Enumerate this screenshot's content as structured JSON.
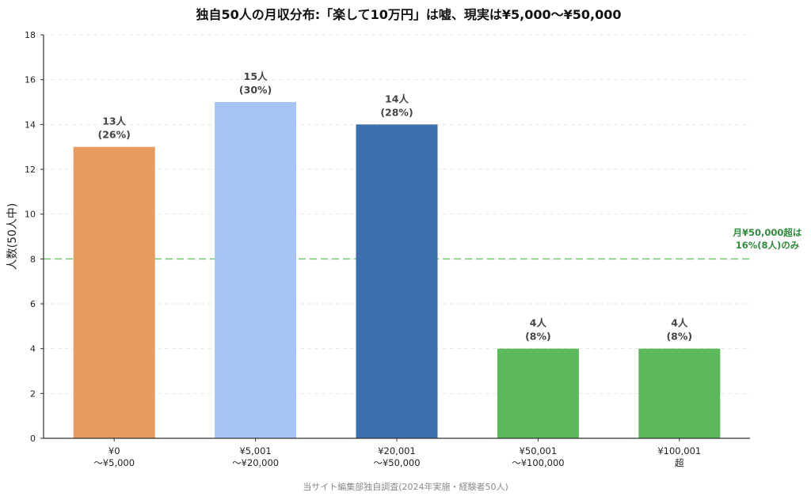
{
  "chart_data": {
    "type": "bar",
    "title": "独自50人の月収分布:「楽して10万円」は嘘、現実は¥5,000〜¥50,000",
    "ylabel": "人数(50人中)",
    "xlabel": "",
    "ylim": [
      0,
      18
    ],
    "yticks": [
      0,
      2,
      4,
      6,
      8,
      10,
      12,
      14,
      16,
      18
    ],
    "grid": true,
    "categories": [
      [
        "¥0",
        "〜¥5,000"
      ],
      [
        "¥5,001",
        "〜¥20,000"
      ],
      [
        "¥20,001",
        "〜¥50,000"
      ],
      [
        "¥50,001",
        "〜¥100,000"
      ],
      [
        "¥100,001",
        "超"
      ]
    ],
    "values": [
      13,
      15,
      14,
      4,
      4
    ],
    "value_labels": [
      [
        "13人",
        "(26%)"
      ],
      [
        "15人",
        "(30%)"
      ],
      [
        "14人",
        "(28%)"
      ],
      [
        "4人",
        "(8%)"
      ],
      [
        "4人",
        "(8%)"
      ]
    ],
    "colors": [
      "#e89b5e",
      "#a7c5f4",
      "#3c6fb0",
      "#5cb85c",
      "#5cb85c"
    ],
    "reference_line": {
      "value": 8,
      "color": "#7ccb7c",
      "label": [
        "月¥50,000超は",
        "16%(8人)のみ"
      ],
      "label_color": "#2e8b3a"
    },
    "source": "当サイト編集部独自調査(2024年実施・経験者50人)"
  }
}
